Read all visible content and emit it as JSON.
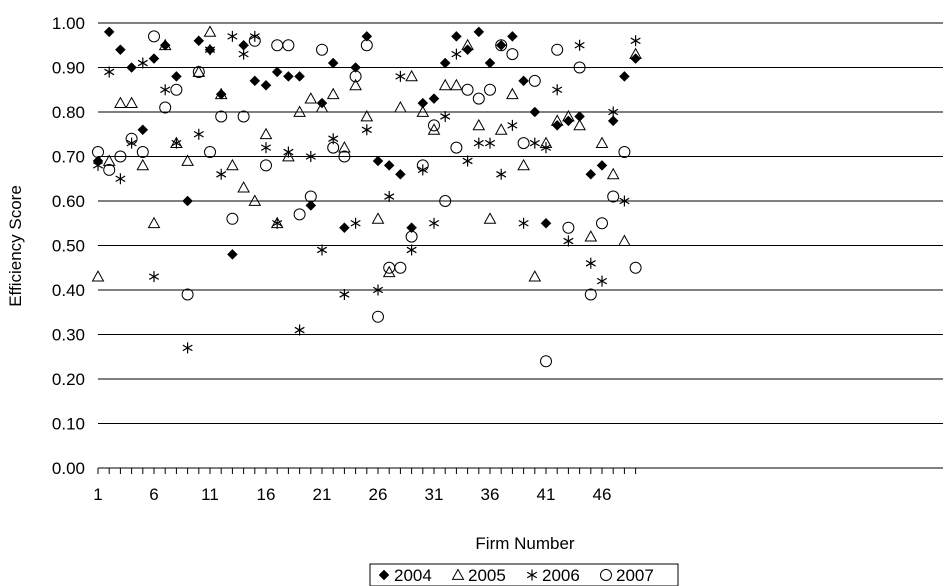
{
  "chart_data": {
    "type": "scatter",
    "title": "",
    "xlabel": "Firm Number",
    "ylabel": "Efficiency Score",
    "xlim": [
      1,
      50
    ],
    "ylim": [
      0,
      1
    ],
    "x_tick_labels": [
      "1",
      "6",
      "11",
      "16",
      "21",
      "26",
      "31",
      "36",
      "41",
      "46"
    ],
    "x_tick_values": [
      1,
      6,
      11,
      16,
      21,
      26,
      31,
      36,
      41,
      46
    ],
    "y_tick_labels": [
      "0.00",
      "0.10",
      "0.20",
      "0.30",
      "0.40",
      "0.50",
      "0.60",
      "0.70",
      "0.80",
      "0.90",
      "1.00"
    ],
    "y_tick_values": [
      0,
      0.1,
      0.2,
      0.3,
      0.4,
      0.5,
      0.6,
      0.7,
      0.8,
      0.9,
      1.0
    ],
    "grid": "horizontal",
    "legend_position": "bottom",
    "series": [
      {
        "name": "2004",
        "marker": "filled-diamond",
        "values": [
          0.69,
          0.98,
          0.94,
          0.9,
          0.76,
          0.92,
          0.95,
          0.88,
          0.6,
          0.96,
          0.94,
          0.84,
          0.48,
          0.95,
          0.87,
          0.86,
          0.89,
          0.88,
          0.88,
          0.59,
          0.82,
          0.91,
          0.54,
          0.9,
          0.97,
          0.69,
          0.68,
          0.66,
          0.54,
          0.82,
          0.83,
          0.91,
          0.97,
          0.94,
          0.98,
          0.91,
          0.95,
          0.97,
          0.87,
          0.8,
          0.55,
          0.77,
          0.78,
          0.79,
          0.66,
          0.68,
          0.78,
          0.88,
          0.92
        ]
      },
      {
        "name": "2005",
        "marker": "open-triangle",
        "values": [
          0.43,
          0.69,
          0.82,
          0.82,
          0.68,
          0.55,
          0.95,
          0.73,
          0.69,
          0.89,
          0.98,
          0.84,
          0.68,
          0.63,
          0.6,
          0.75,
          0.55,
          0.7,
          0.8,
          0.83,
          0.81,
          0.84,
          0.72,
          0.86,
          0.79,
          0.56,
          0.44,
          0.81,
          0.88,
          0.8,
          0.76,
          0.86,
          0.86,
          0.95,
          0.77,
          0.56,
          0.76,
          0.84,
          0.68,
          0.43,
          0.73,
          0.78,
          0.79,
          0.77,
          0.52,
          0.73,
          0.66,
          0.51,
          0.93
        ]
      },
      {
        "name": "2006",
        "marker": "asterisk",
        "values": [
          0.68,
          0.89,
          0.65,
          0.73,
          0.91,
          0.43,
          0.85,
          0.73,
          0.27,
          0.75,
          0.94,
          0.66,
          0.97,
          0.93,
          0.97,
          0.72,
          0.55,
          0.71,
          0.31,
          0.7,
          0.49,
          0.74,
          0.39,
          0.55,
          0.76,
          0.4,
          0.61,
          0.88,
          0.49,
          0.67,
          0.55,
          0.79,
          0.93,
          0.69,
          0.73,
          0.73,
          0.66,
          0.77,
          0.55,
          0.73,
          0.72,
          0.85,
          0.51,
          0.95,
          0.46,
          0.42,
          0.8,
          0.6,
          0.96
        ]
      },
      {
        "name": "2007",
        "marker": "open-circle",
        "values": [
          0.71,
          0.67,
          0.7,
          0.74,
          0.71,
          0.97,
          0.81,
          0.85,
          0.39,
          0.89,
          0.71,
          0.79,
          0.56,
          0.79,
          0.96,
          0.68,
          0.95,
          0.95,
          0.57,
          0.61,
          0.94,
          0.72,
          0.7,
          0.88,
          0.95,
          0.34,
          0.45,
          0.45,
          0.52,
          0.68,
          0.77,
          0.6,
          0.72,
          0.85,
          0.83,
          0.85,
          0.95,
          0.93,
          0.73,
          0.87,
          0.24,
          0.94,
          0.54,
          0.9,
          0.39,
          0.55,
          0.61,
          0.71,
          0.45
        ]
      }
    ]
  }
}
